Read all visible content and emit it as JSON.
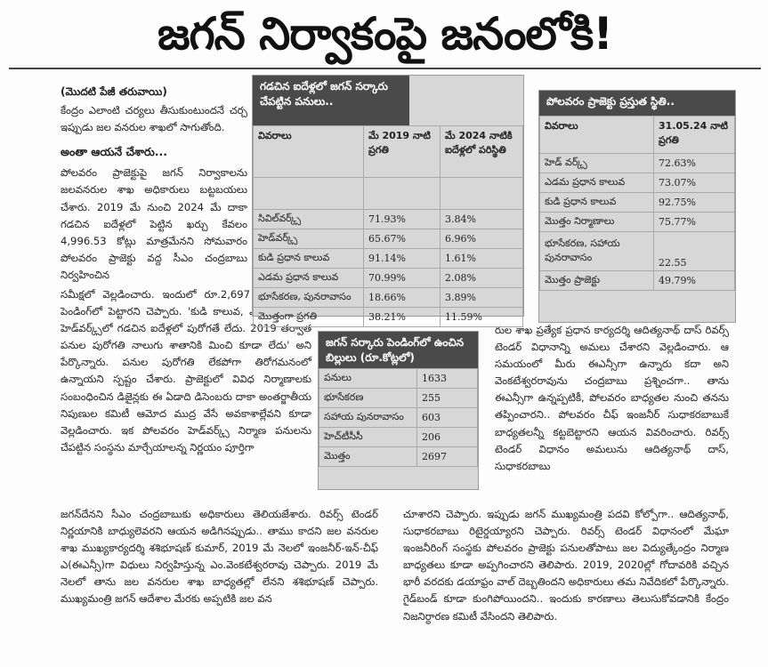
{
  "headline": "జగన్ నిర్వాకంపై జనంలోకి!",
  "article": {
    "continued_label": "(మొదటి పేజీ తరువాయి)",
    "intro": "కేంద్రం ఎలాంటి చర్యలు తీసుకుంటుందనే చర్చ ఇప్పుడు జల వనరుల శాఖలో సాగుతోంది.",
    "subheading": "అంతా ఆయనే చేశారు...",
    "para_left": "పోలవరం ప్రాజెక్టుపై జగన్ నిర్వాకాలను జలవనరుల శాఖ అధికారులు బట్టబయలు చేశారు. 2019 మే నుంచి 2024 మే దాకా గడచిన ఐదేళ్లలో పెట్టిన ఖర్చు కేవలం 4,996.53 కోట్లు మాత్రమేనని సోమవారం పోలవరం ప్రాజెక్టు వద్ద సీఎం చంద్రబాబు నిర్వహించిన",
    "para_wide": "సమీక్షలో వెల్లడించారు. ఇందులో రూ.2,697 కోట్ల బిల్లులు పెండింగ్‌లో పెట్టారని చెప్పారు. 'కుడి కాలువ, ఎడమ కాలువ, హెడ్‌వర్క్స్‌లో గడచిన ఐదేళ్లలో పురోగతే లేదు. 2019 తర్వాత పనుల పురోగతి నాలుగు శాతానికి మించి కూడా లేదు' అని పేర్కొన్నారు. పనుల పురోగతి లేకపోగా తిరోగమనంలో ఉన్నాయని స్పష్టం చేశారు. ప్రాజెక్టులో వివిధ నిర్మాణాలకు సంబంధించిన డిజైన్లకు ఈ ఏడాది డిసెంబరు దాకా అంతర్జాతీయ నిపుణుల కమిటీ ఆమోద ముద్ర వేసే అవకాశాల్లేవని కూడా వెల్లడించారు. ఇక పోలవరం హెడ్‌వర్క్స్ నిర్మాణ పనులను చేపట్టిన సంస్థను మార్చేయాలన్న నిర్ణయం పూర్తిగా",
    "para_full": "జగన్‌దేనని సీఎం చంద్రబాబుకు అధికారులు తెలియజేశారు. రివర్స్ టెండర్ నిర్ణయానికి బాధ్యులెవరని ఆయన అడిగినప్పుడు.. తాము కాదని జల వనరుల శాఖ ముఖ్యకార్యదర్శి శశిభూషణ్ కుమార్, 2019 మే నెలలో ఇంజనీర్-ఇన్-చీఫ్ ఎ(ఈఎన్సీ)గా విధులు నిర్వహిస్తున్న ఎం.వెంకటేశ్వరరావు చెప్పారు. 2019 మే నెలలో తాను జల వనరుల శాఖ బాధ్యతల్లో లేనని శశిభూషణ్ చెప్పారు. ముఖ్యమంత్రి జగన్ ఆదేశాల మేరకు అప్పటికి జల వన",
    "para_right": "రుల శాఖ ప్రత్యేక ప్రధాన కార్యదర్శి ఆదిత్యనాథ్ దాస్ రివర్స్ టెండర్ విధానాన్ని అమలు చేశారని వెల్లడించారు. ఆ సమయంలో మీరు ఈఎన్సీగా ఉన్నారు కదా అని వెంకటేశ్వరరావును చంద్రబాబు ప్రశ్నించగా.. తాను ఈఎన్సీగా ఉన్నప్పటికీ, పోలవరం బాధ్యతల నుంచి తనను తప్పించారని.. పోలవరం చీఫ్ ఇంజనీర్ సుధాకరబాబుకే బాధ్యతలన్నీ కట్టబెట్టారని ఆయన వివరించారు. రివర్స్ టెండర్ విధానం అమలును ఆదిత్యనాథ్ దాస్, సుధాకరబాబు",
    "para_bottom": "చూశారని చెప్పారు. ఇప్పుడు జగన్ ముఖ్యమంత్రి పదవి కోల్పోగా.. ఆదిత్యనాథ్, సుధాకరబాబు రిటైర్డయ్యారని చెప్పారు. రివర్స్ టెండర్ విధానంలో మేఘా ఇంజనీరింగ్ సంస్థకు పోలవరం ప్రాజెక్టు పనులతోపాటు జల విద్యుత్కేంద్రం నిర్మాణ బాధ్యతలు కూడా అప్పగించారని తెలిపారు. 2019, 2020ల్లో గోదావరికి వచ్చిన భారీ వరదకు డయాఫ్రం వాల్ దెబ్బతిందని అధికారులు తమ నివేదికలో పేర్కొన్నారు. గైడ్‌బండ్ కూడా కుంగిపోయిందని.. ఇందుకు కారణాలు తెలుసుకోవడానికి కేంద్రం నిజనిర్ధారణ కమిటీ వేసిందని తెలిపారు."
  },
  "table_works": {
    "title": "గడచిన ఐదేళ్లలో జగన్ సర్కారు చేపట్టిన పనులు..",
    "headers": [
      "వివరాలు",
      "మే 2019 నాటి ప్రగతి",
      "మే 2024 నాటికి ఐదేళ్లలో పరిస్థితి"
    ],
    "rows": [
      [
        "సివిల్‌వర్క్స్",
        "71.93%",
        "3.84%"
      ],
      [
        "హెడ్‌వర్క్స్",
        "65.67%",
        "6.96%"
      ],
      [
        "కుడి ప్రధాన కాలువ",
        "91.14%",
        "1.61%"
      ],
      [
        "ఎడమ ప్రధాన కాలువ",
        "70.99%",
        "2.08%"
      ],
      [
        "భూసేకరణ, పునరావాసం",
        "18.66%",
        "3.89%"
      ],
      [
        "మొత్తంగా ప్రగతి",
        "38.21%",
        "11.59%"
      ]
    ]
  },
  "table_status": {
    "title": "పోలవరం ప్రాజెక్టు ప్రస్తుత స్థితి..",
    "headers": [
      "వివరాలు",
      "31.05.24 నాటి ప్రగతి"
    ],
    "rows": [
      [
        "హెడ్ వర్క్స్",
        "72.63%"
      ],
      [
        "ఎడమ ప్రధాన కాలువ",
        "73.07%"
      ],
      [
        "కుడి ప్రధాన కాలువ",
        "92.75%"
      ],
      [
        "మొత్తం నిర్మాణాలు",
        "75.77%"
      ],
      [
        "భూసేకరణ, సహాయ పునరావాసం",
        "22.55"
      ],
      [
        "మొత్తం ప్రాజెక్టు",
        "49.79%"
      ]
    ]
  },
  "table_bills": {
    "title": "జగన్ సర్కారు పెండింగ్‌లో ఉంచిన బిల్లులు (రూ.కోట్లలో)",
    "rows": [
      [
        "పనులు",
        "1633"
      ],
      [
        "భూసేకరణ",
        "255"
      ],
      [
        "సహాయ పునరావాసం",
        "603"
      ],
      [
        "హెచ్‌టీసీసీ",
        "206"
      ],
      [
        "మొత్తం",
        "2697"
      ]
    ]
  }
}
